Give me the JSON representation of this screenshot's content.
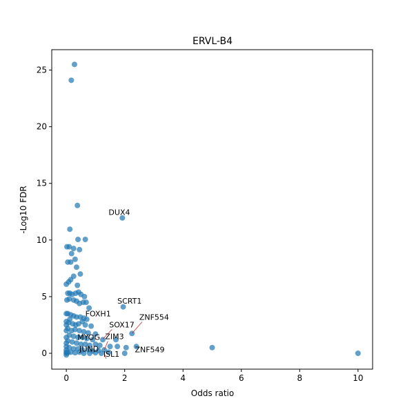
{
  "chart_data": {
    "type": "scatter",
    "title": "ERVL-B4",
    "xlabel": "Odds ratio",
    "ylabel": "-Log10 FDR",
    "xlim": [
      -0.5,
      10.5
    ],
    "ylim": [
      -1.4,
      26.8
    ],
    "xticks": [
      0,
      2,
      4,
      6,
      8,
      10
    ],
    "yticks": [
      0,
      5,
      10,
      15,
      20,
      25
    ],
    "grid": false,
    "legend": "none",
    "colors": {
      "point": "#1f77b4",
      "connector": "#d62728"
    },
    "points": [
      [
        0.28,
        25.5
      ],
      [
        0.17,
        24.1
      ],
      [
        0.38,
        13.05
      ],
      [
        1.92,
        11.95
      ],
      [
        0.12,
        10.95
      ],
      [
        0.4,
        10.05
      ],
      [
        0.65,
        10.05
      ],
      [
        0.02,
        9.4
      ],
      [
        0.1,
        9.4
      ],
      [
        0.25,
        9.25
      ],
      [
        0.45,
        9.15
      ],
      [
        0.18,
        8.8
      ],
      [
        0.3,
        8.3
      ],
      [
        0.05,
        8.05
      ],
      [
        0.15,
        8.05
      ],
      [
        0.35,
        7.6
      ],
      [
        0.48,
        7.0
      ],
      [
        0.25,
        6.8
      ],
      [
        0.15,
        6.5
      ],
      [
        0.08,
        6.3
      ],
      [
        0.0,
        6.1
      ],
      [
        0.38,
        6.0
      ],
      [
        0.05,
        5.3
      ],
      [
        0.12,
        5.3
      ],
      [
        0.2,
        5.2
      ],
      [
        0.32,
        5.3
      ],
      [
        0.42,
        5.4
      ],
      [
        0.5,
        5.2
      ],
      [
        0.62,
        5.0
      ],
      [
        0.1,
        4.8
      ],
      [
        0.25,
        4.7
      ],
      [
        0.02,
        4.7
      ],
      [
        0.35,
        4.6
      ],
      [
        0.45,
        4.4
      ],
      [
        0.58,
        4.5
      ],
      [
        0.68,
        4.5
      ],
      [
        0.78,
        4.0
      ],
      [
        1.95,
        4.1
      ],
      [
        0.05,
        3.5
      ],
      [
        0.0,
        3.5
      ],
      [
        0.15,
        3.4
      ],
      [
        0.25,
        3.3
      ],
      [
        0.35,
        3.2
      ],
      [
        0.48,
        3.2
      ],
      [
        0.6,
        3.1
      ],
      [
        0.7,
        3.0
      ],
      [
        0.55,
        2.8
      ],
      [
        0.12,
        3.0
      ],
      [
        0.08,
        2.7
      ],
      [
        0.22,
        2.6
      ],
      [
        0.32,
        2.5
      ],
      [
        0.42,
        2.6
      ],
      [
        0.65,
        2.5
      ],
      [
        0.85,
        2.4
      ],
      [
        0.0,
        2.8
      ],
      [
        0.0,
        2.5
      ],
      [
        0.05,
        2.2
      ],
      [
        0.18,
        2.0
      ],
      [
        0.3,
        2.1
      ],
      [
        0.45,
        2.0
      ],
      [
        0.6,
        1.9
      ],
      [
        0.75,
        1.8
      ],
      [
        1.0,
        1.7
      ],
      [
        0.0,
        2.0
      ],
      [
        0.1,
        1.6
      ],
      [
        0.25,
        1.5
      ],
      [
        0.4,
        1.4
      ],
      [
        0.55,
        1.4
      ],
      [
        0.7,
        1.3
      ],
      [
        0.9,
        1.2
      ],
      [
        1.25,
        1.2
      ],
      [
        1.7,
        1.2
      ],
      [
        2.25,
        1.75
      ],
      [
        0.0,
        1.4
      ],
      [
        0.05,
        1.1
      ],
      [
        0.2,
        1.0
      ],
      [
        0.35,
        0.9
      ],
      [
        0.5,
        0.8
      ],
      [
        0.65,
        0.8
      ],
      [
        0.8,
        0.7
      ],
      [
        1.0,
        0.8
      ],
      [
        1.15,
        0.7
      ],
      [
        1.5,
        0.6
      ],
      [
        2.05,
        0.5
      ],
      [
        2.4,
        0.6
      ],
      [
        0.0,
        0.9
      ],
      [
        0.0,
        0.6
      ],
      [
        0.1,
        0.5
      ],
      [
        0.25,
        0.4
      ],
      [
        0.4,
        0.4
      ],
      [
        0.55,
        0.3
      ],
      [
        0.75,
        0.3
      ],
      [
        0.9,
        0.2
      ],
      [
        1.1,
        0.25
      ],
      [
        1.3,
        0.3
      ],
      [
        1.45,
        0.1
      ],
      [
        1.75,
        0.6
      ],
      [
        2.0,
        0.0
      ],
      [
        0.0,
        0.3
      ],
      [
        0.0,
        0.1
      ],
      [
        0.0,
        0.0
      ],
      [
        0.05,
        0.05
      ],
      [
        0.15,
        0.1
      ],
      [
        0.3,
        0.05
      ],
      [
        0.45,
        0.1
      ],
      [
        0.6,
        0.0
      ],
      [
        0.8,
        0.0
      ],
      [
        1.0,
        0.05
      ],
      [
        1.2,
        0.0
      ],
      [
        0.0,
        -0.15
      ],
      [
        5.0,
        0.5
      ],
      [
        10.0,
        0.0
      ]
    ],
    "annotations": [
      {
        "text": "DUX4",
        "x": 1.9,
        "y": 11.95,
        "tx": 1.45,
        "ty": 12.2,
        "connector": false
      },
      {
        "text": "SCRT1",
        "x": 1.95,
        "y": 4.1,
        "tx": 1.75,
        "ty": 4.4,
        "connector": false
      },
      {
        "text": "ZNF554",
        "x": 2.25,
        "y": 1.75,
        "tx": 2.5,
        "ty": 2.95,
        "connector": true
      },
      {
        "text": "FOXH1",
        "x": 0.85,
        "y": 2.4,
        "tx": 0.65,
        "ty": 3.25,
        "connector": false
      },
      {
        "text": "SOX17",
        "x": 1.25,
        "y": 1.25,
        "tx": 1.47,
        "ty": 2.3,
        "connector": true
      },
      {
        "text": "ZIM3",
        "x": 1.3,
        "y": 0.3,
        "tx": 1.33,
        "ty": 1.25,
        "connector": true
      },
      {
        "text": "MYOG",
        "x": 0.4,
        "y": 1.0,
        "tx": 0.38,
        "ty": 1.2,
        "connector": false
      },
      {
        "text": "JUND",
        "x": 0.4,
        "y": 0.0,
        "tx": 0.45,
        "ty": 0.15,
        "connector": false
      },
      {
        "text": "ZNF549",
        "x": 2.05,
        "y": 0.3,
        "tx": 2.35,
        "ty": 0.1,
        "connector": false
      },
      {
        "text": "ISL1",
        "x": 1.3,
        "y": 0.0,
        "tx": 1.27,
        "ty": -0.3,
        "connector": true
      }
    ]
  }
}
